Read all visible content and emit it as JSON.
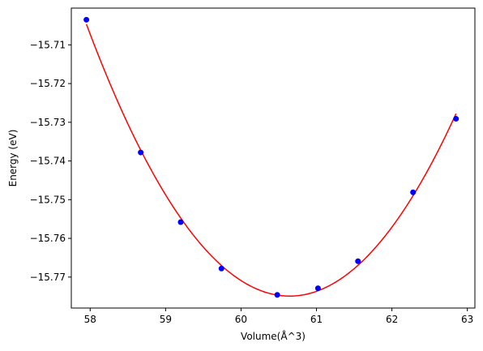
{
  "chart_data": {
    "type": "scatter",
    "title": "",
    "xlabel": "Volume(Å^3)",
    "ylabel": "Energy (eV)",
    "xlim": [
      57.75,
      63.1
    ],
    "ylim": [
      -15.778,
      -15.7005
    ],
    "xticks": [
      58,
      59,
      60,
      61,
      62,
      63
    ],
    "yticks": [
      -15.71,
      -15.72,
      -15.73,
      -15.74,
      -15.75,
      -15.76,
      -15.77
    ],
    "grid": false,
    "legend": "none",
    "series": [
      {
        "kind": "points",
        "color": "#0000ff",
        "x": [
          57.95,
          58.67,
          59.2,
          59.74,
          60.48,
          61.02,
          61.55,
          62.28,
          62.85
        ],
        "y": [
          -15.7035,
          -15.7378,
          -15.7558,
          -15.7678,
          -15.7746,
          -15.7729,
          -15.7659,
          -15.7481,
          -15.7291
        ]
      },
      {
        "kind": "fit-curve",
        "color": "#ff0000",
        "vertex": [
          60.55,
          -15.7747
        ],
        "x_range": [
          57.95,
          62.85
        ]
      }
    ]
  }
}
